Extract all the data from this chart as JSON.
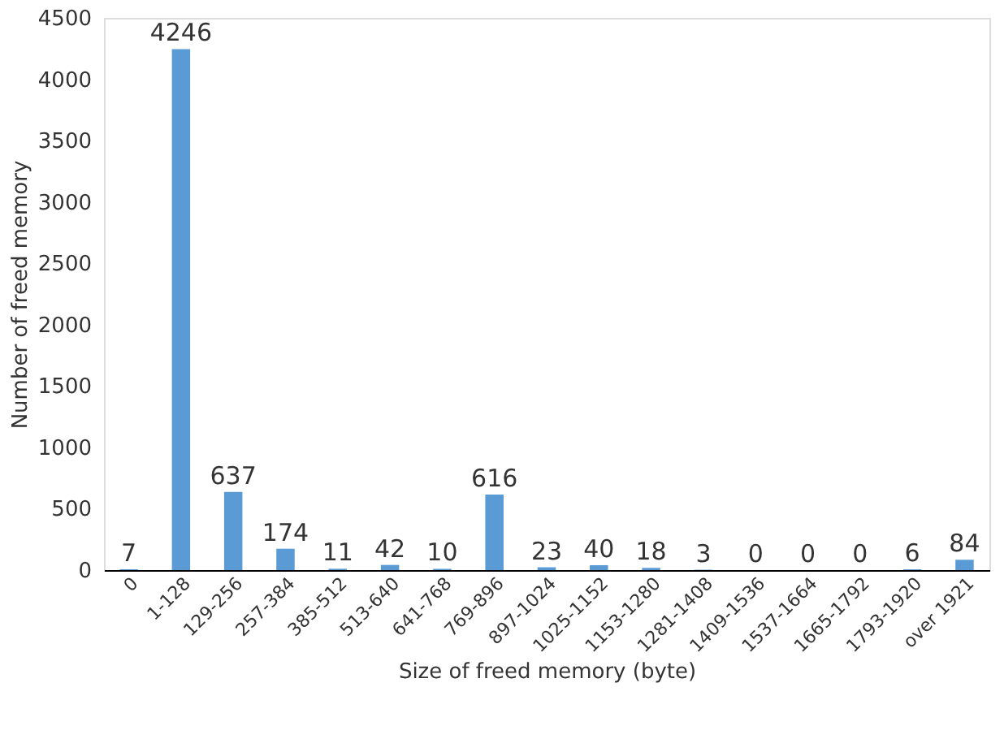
{
  "chart_data": {
    "type": "bar",
    "xlabel": "Size of freed memory (byte)",
    "ylabel": "Number of freed memory",
    "categories": [
      "0",
      "1-128",
      "129-256",
      "257-384",
      "385-512",
      "513-640",
      "641-768",
      "769-896",
      "897-1024",
      "1025-1152",
      "1153-1280",
      "1281-1408",
      "1409-1536",
      "1537-1664",
      "1665-1792",
      "1793-1920",
      "over 1921"
    ],
    "values": [
      7,
      4246,
      637,
      174,
      11,
      42,
      10,
      616,
      23,
      40,
      18,
      3,
      0,
      0,
      0,
      6,
      84
    ],
    "color": "#5b9bd5",
    "ylim": [
      0,
      4500
    ],
    "yticks": [
      0,
      500,
      1000,
      1500,
      2000,
      2500,
      3000,
      3500,
      4000,
      4500
    ],
    "grid": false,
    "data_labels": true
  }
}
